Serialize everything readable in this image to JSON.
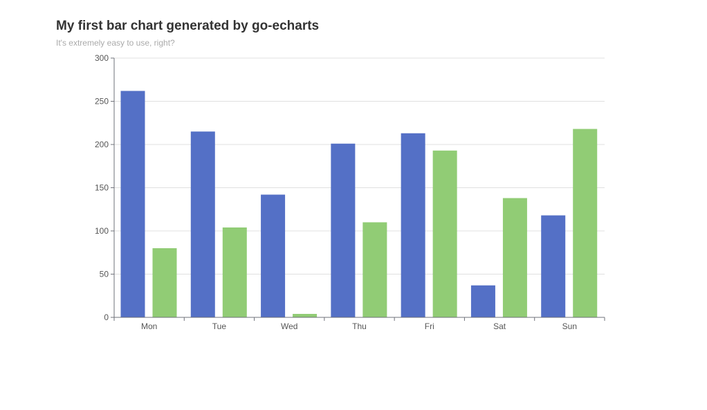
{
  "chart_data": {
    "type": "bar",
    "title": "My first bar chart generated by go-echarts",
    "subtitle": "It's extremely easy to use, right?",
    "categories": [
      "Mon",
      "Tue",
      "Wed",
      "Thu",
      "Fri",
      "Sat",
      "Sun"
    ],
    "series": [
      {
        "values": [
          262,
          215,
          142,
          201,
          213,
          37,
          118
        ],
        "color": "#5470c6"
      },
      {
        "values": [
          80,
          104,
          4,
          110,
          193,
          138,
          218
        ],
        "color": "#91cc75"
      }
    ],
    "ylim": [
      0,
      300
    ],
    "yticks": [
      "0",
      "50",
      "100",
      "150",
      "200",
      "250",
      "300"
    ],
    "grid": true
  }
}
